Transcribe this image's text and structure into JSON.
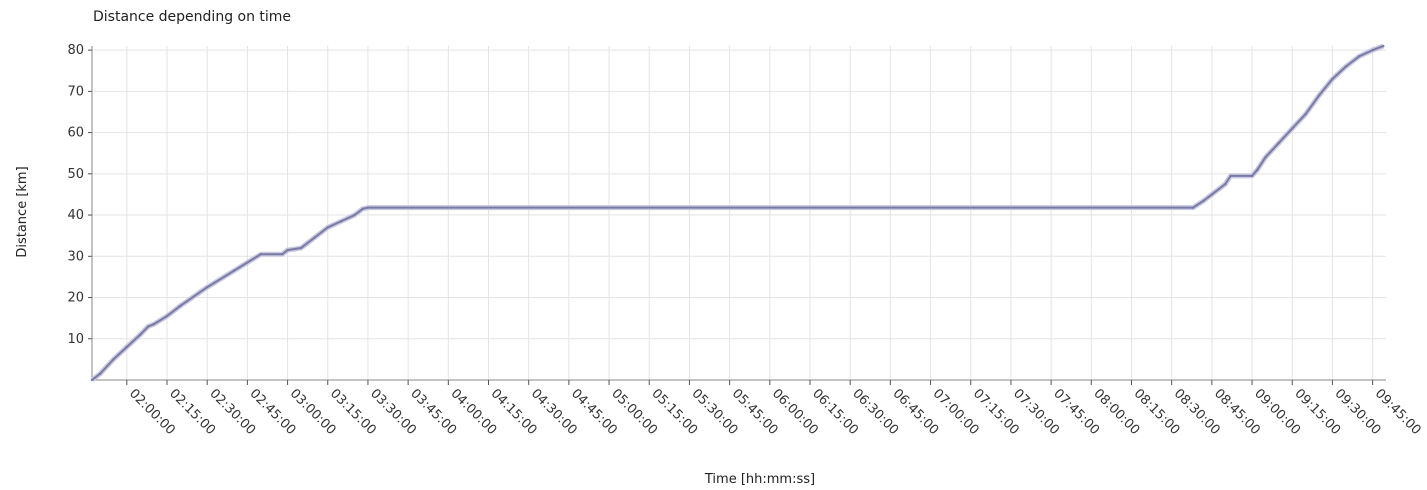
{
  "chart_data": {
    "type": "line",
    "title": "Distance depending on time",
    "xlabel": "Time  [hh:mm:ss]",
    "ylabel": "Distance [km]",
    "xlim": [
      "01:47:00",
      "09:50:00"
    ],
    "ylim": [
      0,
      81
    ],
    "x_tick_labels": [
      "02:00:00",
      "02:15:00",
      "02:30:00",
      "02:45:00",
      "03:00:00",
      "03:15:00",
      "03:30:00",
      "03:45:00",
      "04:00:00",
      "04:15:00",
      "04:30:00",
      "04:45:00",
      "05:00:00",
      "05:15:00",
      "05:30:00",
      "05:45:00",
      "06:00:00",
      "06:15:00",
      "06:30:00",
      "06:45:00",
      "07:00:00",
      "07:15:00",
      "07:30:00",
      "07:45:00",
      "08:00:00",
      "08:15:00",
      "08:30:00",
      "08:45:00",
      "09:00:00",
      "09:15:00",
      "09:30:00",
      "09:45:00"
    ],
    "y_ticks": [
      10,
      20,
      30,
      40,
      50,
      60,
      70,
      80
    ],
    "grid": true,
    "series": [
      {
        "color": "#7a7aa6",
        "points": [
          [
            "01:47:00",
            0
          ],
          [
            "01:50:00",
            1.5
          ],
          [
            "01:55:00",
            5
          ],
          [
            "02:00:00",
            8
          ],
          [
            "02:05:00",
            11
          ],
          [
            "02:08:00",
            13
          ],
          [
            "02:10:00",
            13.5
          ],
          [
            "02:15:00",
            15.5
          ],
          [
            "02:20:00",
            18
          ],
          [
            "02:30:00",
            22.5
          ],
          [
            "02:40:00",
            26.5
          ],
          [
            "02:50:00",
            30.5
          ],
          [
            "02:58:00",
            30.5
          ],
          [
            "03:00:00",
            31.5
          ],
          [
            "03:05:00",
            32
          ],
          [
            "03:10:00",
            34.5
          ],
          [
            "03:15:00",
            37
          ],
          [
            "03:20:00",
            38.5
          ],
          [
            "03:25:00",
            40
          ],
          [
            "03:28:00",
            41.5
          ],
          [
            "03:30:00",
            41.8
          ],
          [
            "08:38:00",
            41.8
          ],
          [
            "08:42:00",
            43.5
          ],
          [
            "08:45:00",
            45
          ],
          [
            "08:50:00",
            47.5
          ],
          [
            "08:52:00",
            49.5
          ],
          [
            "09:00:00",
            49.5
          ],
          [
            "09:02:00",
            51
          ],
          [
            "09:05:00",
            54
          ],
          [
            "09:10:00",
            57.5
          ],
          [
            "09:15:00",
            61
          ],
          [
            "09:20:00",
            64.5
          ],
          [
            "09:25:00",
            69
          ],
          [
            "09:30:00",
            73
          ],
          [
            "09:35:00",
            76
          ],
          [
            "09:40:00",
            78.5
          ],
          [
            "09:45:00",
            80
          ],
          [
            "09:49:00",
            81
          ]
        ]
      }
    ]
  }
}
